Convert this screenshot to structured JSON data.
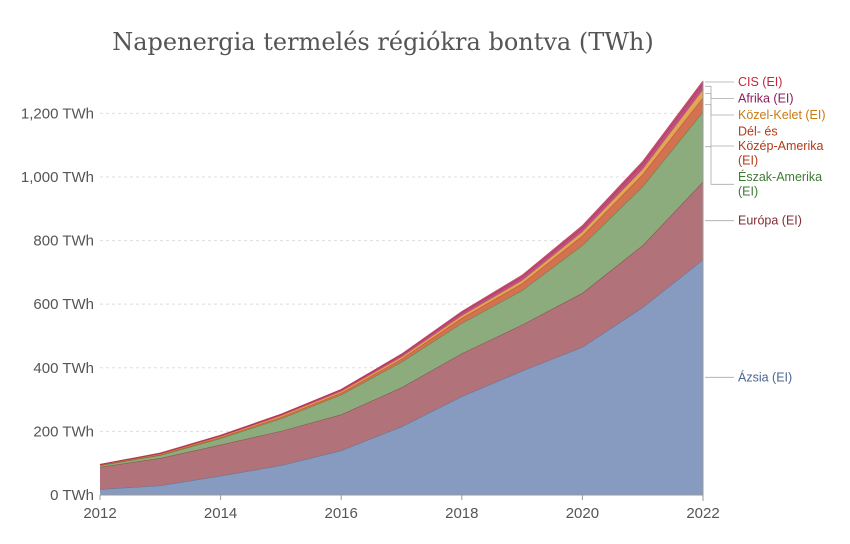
{
  "chart_data": {
    "type": "area",
    "stacked": true,
    "title": "Napenergia termelés régiókra bontva (TWh)",
    "xlabel": "",
    "ylabel": "",
    "x": [
      2012,
      2013,
      2014,
      2015,
      2016,
      2017,
      2018,
      2019,
      2020,
      2021,
      2022
    ],
    "xlim": [
      2012,
      2022
    ],
    "ylim": [
      0,
      1330
    ],
    "x_ticks": [
      {
        "value": 2012,
        "label": "2012"
      },
      {
        "value": 2014,
        "label": "2014"
      },
      {
        "value": 2016,
        "label": "2016"
      },
      {
        "value": 2018,
        "label": "2018"
      },
      {
        "value": 2020,
        "label": "2020"
      },
      {
        "value": 2022,
        "label": "2022"
      }
    ],
    "y_ticks": [
      {
        "value": 0,
        "label": "0 TWh"
      },
      {
        "value": 200,
        "label": "200 TWh"
      },
      {
        "value": 400,
        "label": "400 TWh"
      },
      {
        "value": 600,
        "label": "600 TWh"
      },
      {
        "value": 800,
        "label": "800 TWh"
      },
      {
        "value": 1000,
        "label": "1,000 TWh"
      },
      {
        "value": 1200,
        "label": "1,200 TWh"
      }
    ],
    "grid": true,
    "legend_placement": "right, inline labels at series ends",
    "series": [
      {
        "name": "Ázsia (EI)",
        "color": "#7f96bc",
        "label_color": "#4a6590",
        "values": [
          18,
          30,
          60,
          93,
          140,
          215,
          310,
          390,
          465,
          590,
          740
        ]
      },
      {
        "name": "Európa (EI)",
        "color": "#ad6b72",
        "label_color": "#7f2d35",
        "values": [
          70,
          86,
          98,
          108,
          113,
          123,
          135,
          145,
          170,
          195,
          245
        ]
      },
      {
        "name": "Észak-Amerika (EI)",
        "color": "#87a877",
        "label_color": "#3f7a35",
        "values": [
          5,
          9,
          20,
          39,
          62,
          80,
          95,
          108,
          150,
          185,
          220
        ]
      },
      {
        "name": "Dél- és Közép-Amerika (EI)",
        "color": "#d06a48",
        "label_color": "#b33a1a",
        "values": [
          1,
          2,
          3,
          5,
          6,
          10,
          16,
          22,
          30,
          38,
          45
        ]
      },
      {
        "name": "Közel-Kelet (EI)",
        "color": "#e0a14f",
        "label_color": "#c77a14",
        "values": [
          1,
          2,
          3,
          4,
          5,
          6,
          8,
          10,
          13,
          17,
          25
        ]
      },
      {
        "name": "Afrika (EI)",
        "color": "#b8467f",
        "label_color": "#8f1b5c",
        "values": [
          1,
          2,
          3,
          4,
          5,
          7,
          10,
          12,
          14,
          18,
          20
        ]
      },
      {
        "name": "CIS (EI)",
        "color": "#cc5566",
        "label_color": "#c1283f",
        "values": [
          0,
          1,
          1,
          1,
          1,
          2,
          3,
          4,
          5,
          6,
          7
        ]
      }
    ],
    "legend_lines": [
      {
        "series": 6,
        "lines": [
          "CIS (EI)"
        ]
      },
      {
        "series": 5,
        "lines": [
          "Afrika (EI)"
        ]
      },
      {
        "series": 4,
        "lines": [
          "Közel-Kelet (EI)"
        ]
      },
      {
        "series": 3,
        "lines": [
          "Dél- és",
          "Közép-Amerika",
          "(EI)"
        ]
      },
      {
        "series": 2,
        "lines": [
          "Észak-Amerika",
          "(EI)"
        ]
      },
      {
        "series": 1,
        "lines": [
          "Európa (EI)"
        ]
      },
      {
        "series": 0,
        "lines": [
          "Ázsia (EI)"
        ]
      }
    ]
  }
}
